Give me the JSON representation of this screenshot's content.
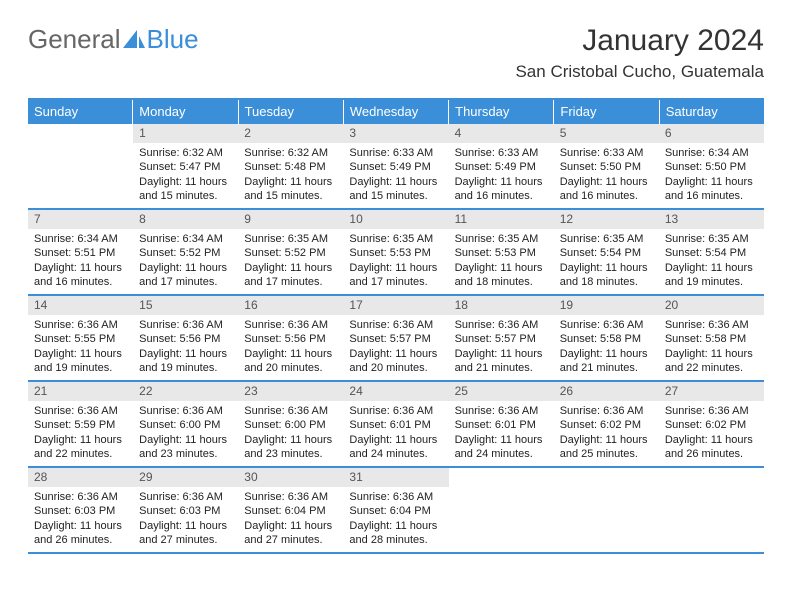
{
  "logo": {
    "text1": "General",
    "text2": "Blue"
  },
  "title": "January 2024",
  "subtitle": "San Cristobal Cucho, Guatemala",
  "colors": {
    "brand": "#3a8fd8",
    "header_text": "#ffffff",
    "daynum_bg": "#e8e8e8",
    "text": "#222222",
    "background": "#ffffff"
  },
  "dow": [
    "Sunday",
    "Monday",
    "Tuesday",
    "Wednesday",
    "Thursday",
    "Friday",
    "Saturday"
  ],
  "weeks": [
    [
      {
        "n": "",
        "sr": "",
        "ss": "",
        "dl": ""
      },
      {
        "n": "1",
        "sr": "Sunrise: 6:32 AM",
        "ss": "Sunset: 5:47 PM",
        "dl": "Daylight: 11 hours and 15 minutes."
      },
      {
        "n": "2",
        "sr": "Sunrise: 6:32 AM",
        "ss": "Sunset: 5:48 PM",
        "dl": "Daylight: 11 hours and 15 minutes."
      },
      {
        "n": "3",
        "sr": "Sunrise: 6:33 AM",
        "ss": "Sunset: 5:49 PM",
        "dl": "Daylight: 11 hours and 15 minutes."
      },
      {
        "n": "4",
        "sr": "Sunrise: 6:33 AM",
        "ss": "Sunset: 5:49 PM",
        "dl": "Daylight: 11 hours and 16 minutes."
      },
      {
        "n": "5",
        "sr": "Sunrise: 6:33 AM",
        "ss": "Sunset: 5:50 PM",
        "dl": "Daylight: 11 hours and 16 minutes."
      },
      {
        "n": "6",
        "sr": "Sunrise: 6:34 AM",
        "ss": "Sunset: 5:50 PM",
        "dl": "Daylight: 11 hours and 16 minutes."
      }
    ],
    [
      {
        "n": "7",
        "sr": "Sunrise: 6:34 AM",
        "ss": "Sunset: 5:51 PM",
        "dl": "Daylight: 11 hours and 16 minutes."
      },
      {
        "n": "8",
        "sr": "Sunrise: 6:34 AM",
        "ss": "Sunset: 5:52 PM",
        "dl": "Daylight: 11 hours and 17 minutes."
      },
      {
        "n": "9",
        "sr": "Sunrise: 6:35 AM",
        "ss": "Sunset: 5:52 PM",
        "dl": "Daylight: 11 hours and 17 minutes."
      },
      {
        "n": "10",
        "sr": "Sunrise: 6:35 AM",
        "ss": "Sunset: 5:53 PM",
        "dl": "Daylight: 11 hours and 17 minutes."
      },
      {
        "n": "11",
        "sr": "Sunrise: 6:35 AM",
        "ss": "Sunset: 5:53 PM",
        "dl": "Daylight: 11 hours and 18 minutes."
      },
      {
        "n": "12",
        "sr": "Sunrise: 6:35 AM",
        "ss": "Sunset: 5:54 PM",
        "dl": "Daylight: 11 hours and 18 minutes."
      },
      {
        "n": "13",
        "sr": "Sunrise: 6:35 AM",
        "ss": "Sunset: 5:54 PM",
        "dl": "Daylight: 11 hours and 19 minutes."
      }
    ],
    [
      {
        "n": "14",
        "sr": "Sunrise: 6:36 AM",
        "ss": "Sunset: 5:55 PM",
        "dl": "Daylight: 11 hours and 19 minutes."
      },
      {
        "n": "15",
        "sr": "Sunrise: 6:36 AM",
        "ss": "Sunset: 5:56 PM",
        "dl": "Daylight: 11 hours and 19 minutes."
      },
      {
        "n": "16",
        "sr": "Sunrise: 6:36 AM",
        "ss": "Sunset: 5:56 PM",
        "dl": "Daylight: 11 hours and 20 minutes."
      },
      {
        "n": "17",
        "sr": "Sunrise: 6:36 AM",
        "ss": "Sunset: 5:57 PM",
        "dl": "Daylight: 11 hours and 20 minutes."
      },
      {
        "n": "18",
        "sr": "Sunrise: 6:36 AM",
        "ss": "Sunset: 5:57 PM",
        "dl": "Daylight: 11 hours and 21 minutes."
      },
      {
        "n": "19",
        "sr": "Sunrise: 6:36 AM",
        "ss": "Sunset: 5:58 PM",
        "dl": "Daylight: 11 hours and 21 minutes."
      },
      {
        "n": "20",
        "sr": "Sunrise: 6:36 AM",
        "ss": "Sunset: 5:58 PM",
        "dl": "Daylight: 11 hours and 22 minutes."
      }
    ],
    [
      {
        "n": "21",
        "sr": "Sunrise: 6:36 AM",
        "ss": "Sunset: 5:59 PM",
        "dl": "Daylight: 11 hours and 22 minutes."
      },
      {
        "n": "22",
        "sr": "Sunrise: 6:36 AM",
        "ss": "Sunset: 6:00 PM",
        "dl": "Daylight: 11 hours and 23 minutes."
      },
      {
        "n": "23",
        "sr": "Sunrise: 6:36 AM",
        "ss": "Sunset: 6:00 PM",
        "dl": "Daylight: 11 hours and 23 minutes."
      },
      {
        "n": "24",
        "sr": "Sunrise: 6:36 AM",
        "ss": "Sunset: 6:01 PM",
        "dl": "Daylight: 11 hours and 24 minutes."
      },
      {
        "n": "25",
        "sr": "Sunrise: 6:36 AM",
        "ss": "Sunset: 6:01 PM",
        "dl": "Daylight: 11 hours and 24 minutes."
      },
      {
        "n": "26",
        "sr": "Sunrise: 6:36 AM",
        "ss": "Sunset: 6:02 PM",
        "dl": "Daylight: 11 hours and 25 minutes."
      },
      {
        "n": "27",
        "sr": "Sunrise: 6:36 AM",
        "ss": "Sunset: 6:02 PM",
        "dl": "Daylight: 11 hours and 26 minutes."
      }
    ],
    [
      {
        "n": "28",
        "sr": "Sunrise: 6:36 AM",
        "ss": "Sunset: 6:03 PM",
        "dl": "Daylight: 11 hours and 26 minutes."
      },
      {
        "n": "29",
        "sr": "Sunrise: 6:36 AM",
        "ss": "Sunset: 6:03 PM",
        "dl": "Daylight: 11 hours and 27 minutes."
      },
      {
        "n": "30",
        "sr": "Sunrise: 6:36 AM",
        "ss": "Sunset: 6:04 PM",
        "dl": "Daylight: 11 hours and 27 minutes."
      },
      {
        "n": "31",
        "sr": "Sunrise: 6:36 AM",
        "ss": "Sunset: 6:04 PM",
        "dl": "Daylight: 11 hours and 28 minutes."
      },
      {
        "n": "",
        "sr": "",
        "ss": "",
        "dl": ""
      },
      {
        "n": "",
        "sr": "",
        "ss": "",
        "dl": ""
      },
      {
        "n": "",
        "sr": "",
        "ss": "",
        "dl": ""
      }
    ]
  ]
}
